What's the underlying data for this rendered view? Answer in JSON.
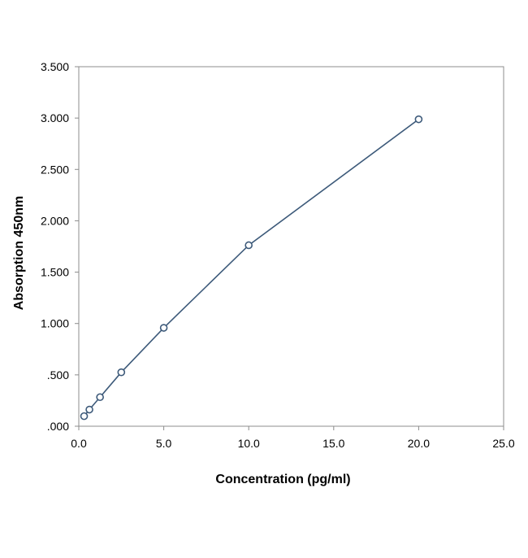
{
  "chart_data": {
    "type": "line",
    "title": "",
    "xlabel": "Concentration (pg/ml)",
    "ylabel": "Absorption 450nm",
    "xlim": [
      0,
      25
    ],
    "ylim": [
      0,
      3.5
    ],
    "xticks": [
      0,
      5,
      10,
      15,
      20,
      25
    ],
    "xtick_labels": [
      "0.0",
      "5.0",
      "10.0",
      "15.0",
      "20.0",
      "25.0"
    ],
    "yticks": [
      0,
      0.5,
      1.0,
      1.5,
      2.0,
      2.5,
      3.0,
      3.5
    ],
    "ytick_labels": [
      ".000",
      ".500",
      "1.000",
      "1.500",
      "2.000",
      "2.500",
      "3.000",
      "3.500"
    ],
    "grid": false,
    "legend": "none",
    "series": [
      {
        "x": [
          0.3125,
          0.625,
          1.25,
          2.5,
          5.0,
          10.0,
          20.0
        ],
        "y": [
          0.098,
          0.162,
          0.283,
          0.525,
          0.958,
          1.762,
          2.988
        ],
        "color": "#3d5a7a",
        "marker": "open-circle"
      }
    ]
  }
}
